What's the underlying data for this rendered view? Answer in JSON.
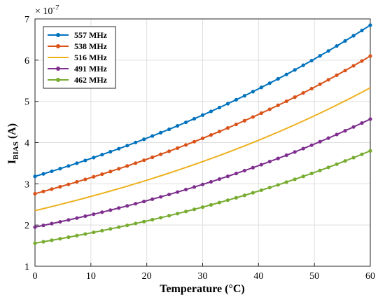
{
  "chart_data": {
    "type": "line",
    "xlabel": "Temperature (°C)",
    "ylabel_main": "I",
    "ylabel_sub": "BIAS",
    "ylabel_unit": " (A)",
    "y_exponent_base": "× 10",
    "y_exponent": "-7",
    "xlim": [
      0,
      60
    ],
    "ylim": [
      1,
      7
    ],
    "xticks": [
      0,
      10,
      20,
      30,
      40,
      50,
      60
    ],
    "yticks": [
      1,
      2,
      3,
      4,
      5,
      6,
      7
    ],
    "grid": true,
    "legend_position": "top-left",
    "series": [
      {
        "name": "557 MHz",
        "color": "#0072BD",
        "marker": "dot",
        "y0": 3.18,
        "y60": 6.85
      },
      {
        "name": "538 MHz",
        "color": "#D95319",
        "marker": "dot",
        "y0": 2.76,
        "y60": 6.1
      },
      {
        "name": "516 MHz",
        "color": "#EDB120",
        "marker": "none",
        "y0": 2.35,
        "y60": 5.33
      },
      {
        "name": "491 MHz",
        "color": "#7E2F8E",
        "marker": "dot",
        "y0": 1.95,
        "y60": 4.57
      },
      {
        "name": "462 MHz",
        "color": "#77AC30",
        "marker": "dot",
        "y0": 1.56,
        "y60": 3.8
      }
    ]
  }
}
